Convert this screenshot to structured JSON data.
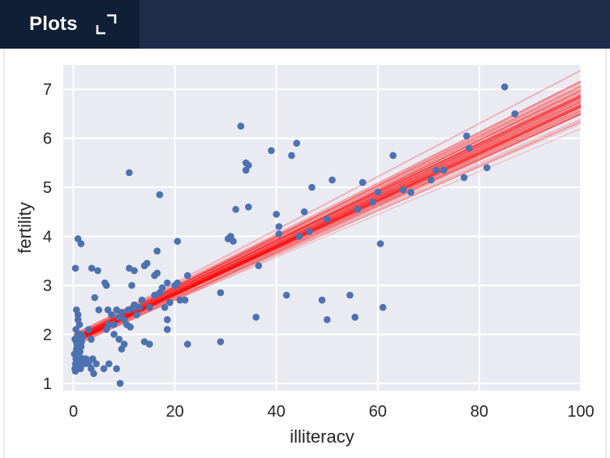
{
  "tab": {
    "label": "Plots",
    "expand_icon": "expand-icon"
  },
  "colors": {
    "header_bg": "#1e2e4a",
    "tab_bg": "#0f1f36",
    "plot_bg": "#eaeaf2",
    "point": "#4c72b0",
    "line": "#ff0000"
  },
  "chart_data": {
    "type": "scatter",
    "title": "",
    "xlabel": "illiteracy",
    "ylabel": "fertility",
    "xlim": [
      -2,
      100
    ],
    "ylim": [
      0.85,
      7.5
    ],
    "xticks": [
      0,
      20,
      40,
      60,
      80,
      100
    ],
    "yticks": [
      1,
      2,
      3,
      4,
      5,
      6,
      7
    ],
    "grid": true,
    "points": [
      [
        0.3,
        1.3
      ],
      [
        0.4,
        1.4
      ],
      [
        0.5,
        1.5
      ],
      [
        0.5,
        1.6
      ],
      [
        0.6,
        1.7
      ],
      [
        0.7,
        1.8
      ],
      [
        0.8,
        1.9
      ],
      [
        0.9,
        2.0
      ],
      [
        1.0,
        1.35
      ],
      [
        1.1,
        1.45
      ],
      [
        1.2,
        1.55
      ],
      [
        1.3,
        1.65
      ],
      [
        1.5,
        1.75
      ],
      [
        1.6,
        1.85
      ],
      [
        1.8,
        1.95
      ],
      [
        2.0,
        1.5
      ],
      [
        2.2,
        1.4
      ],
      [
        0.4,
        1.25
      ],
      [
        0.8,
        1.3
      ],
      [
        1.4,
        1.3
      ],
      [
        0.2,
        1.6
      ],
      [
        0.3,
        1.9
      ],
      [
        0.5,
        2.1
      ],
      [
        0.9,
        2.3
      ],
      [
        1.2,
        2.2
      ],
      [
        1.5,
        2.0
      ],
      [
        2.5,
        1.5
      ],
      [
        3.0,
        1.4
      ],
      [
        3.5,
        1.3
      ],
      [
        4.0,
        1.2
      ],
      [
        3.8,
        1.5
      ],
      [
        4.5,
        1.4
      ],
      [
        0.6,
        2.5
      ],
      [
        0.9,
        2.4
      ],
      [
        1.5,
        3.85
      ],
      [
        0.9,
        3.95
      ],
      [
        0.4,
        3.35
      ],
      [
        3.6,
        3.35
      ],
      [
        4.8,
        3.3
      ],
      [
        6.2,
        3.05
      ],
      [
        6.5,
        3.0
      ],
      [
        4.2,
        2.75
      ],
      [
        5.0,
        2.5
      ],
      [
        6.8,
        2.5
      ],
      [
        7.5,
        2.4
      ],
      [
        8.0,
        2.2
      ],
      [
        8.5,
        2.5
      ],
      [
        9.0,
        2.35
      ],
      [
        9.5,
        2.45
      ],
      [
        10.0,
        2.3
      ],
      [
        7.0,
        2.2
      ],
      [
        6.5,
        2.1
      ],
      [
        8.0,
        2.0
      ],
      [
        9.0,
        1.9
      ],
      [
        10.0,
        1.8
      ],
      [
        9.5,
        1.7
      ],
      [
        3.0,
        2.1
      ],
      [
        3.5,
        1.9
      ],
      [
        7.0,
        1.4
      ],
      [
        8.5,
        1.3
      ],
      [
        6.0,
        1.3
      ],
      [
        9.2,
        1.0
      ],
      [
        11.0,
        5.3
      ],
      [
        17.0,
        4.85
      ],
      [
        11.0,
        3.35
      ],
      [
        12.0,
        3.3
      ],
      [
        14.0,
        3.4
      ],
      [
        14.5,
        3.45
      ],
      [
        16.5,
        3.7
      ],
      [
        16.0,
        3.2
      ],
      [
        16.5,
        3.25
      ],
      [
        11.5,
        3.0
      ],
      [
        12.0,
        2.6
      ],
      [
        13.0,
        2.55
      ],
      [
        15.0,
        2.55
      ],
      [
        16.0,
        2.8
      ],
      [
        17.0,
        2.85
      ],
      [
        17.5,
        2.95
      ],
      [
        18.5,
        3.05
      ],
      [
        18.0,
        2.55
      ],
      [
        19.0,
        2.65
      ],
      [
        20.0,
        3.0
      ],
      [
        20.5,
        3.05
      ],
      [
        21.0,
        2.7
      ],
      [
        22.0,
        2.7
      ],
      [
        22.5,
        3.2
      ],
      [
        20.5,
        3.9
      ],
      [
        18.5,
        2.3
      ],
      [
        18.5,
        2.1
      ],
      [
        14.0,
        1.85
      ],
      [
        15.0,
        1.8
      ],
      [
        22.5,
        1.8
      ],
      [
        10.5,
        2.2
      ],
      [
        11.2,
        2.15
      ],
      [
        12.5,
        2.4
      ],
      [
        10.8,
        2.5
      ],
      [
        11.8,
        2.55
      ],
      [
        13.5,
        2.7
      ],
      [
        33.0,
        6.25
      ],
      [
        34.0,
        5.5
      ],
      [
        34.5,
        5.45
      ],
      [
        34.0,
        5.35
      ],
      [
        32.0,
        4.55
      ],
      [
        34.5,
        4.6
      ],
      [
        31.0,
        4.0
      ],
      [
        30.5,
        3.95
      ],
      [
        31.5,
        3.9
      ],
      [
        36.5,
        3.4
      ],
      [
        36.0,
        2.35
      ],
      [
        29.0,
        2.85
      ],
      [
        29.0,
        1.85
      ],
      [
        39.0,
        5.75
      ],
      [
        43.0,
        5.65
      ],
      [
        44.0,
        5.9
      ],
      [
        47.0,
        5.0
      ],
      [
        40.0,
        4.45
      ],
      [
        40.5,
        4.2
      ],
      [
        40.5,
        4.05
      ],
      [
        44.5,
        4.0
      ],
      [
        45.5,
        4.5
      ],
      [
        46.5,
        4.1
      ],
      [
        51.0,
        5.15
      ],
      [
        50.0,
        4.35
      ],
      [
        42.0,
        2.8
      ],
      [
        49.0,
        2.7
      ],
      [
        50.0,
        2.3
      ],
      [
        54.5,
        2.8
      ],
      [
        55.5,
        2.35
      ],
      [
        57.0,
        5.1
      ],
      [
        56.0,
        4.55
      ],
      [
        59.0,
        4.7
      ],
      [
        60.0,
        4.9
      ],
      [
        60.5,
        3.85
      ],
      [
        61.0,
        2.55
      ],
      [
        63.0,
        5.65
      ],
      [
        65.0,
        4.95
      ],
      [
        66.5,
        4.9
      ],
      [
        70.5,
        5.15
      ],
      [
        71.5,
        5.35
      ],
      [
        73.0,
        5.35
      ],
      [
        77.0,
        5.2
      ],
      [
        77.5,
        6.05
      ],
      [
        78.0,
        5.8
      ],
      [
        81.5,
        5.4
      ],
      [
        85.0,
        7.05
      ],
      [
        87.0,
        6.5
      ]
    ],
    "lines": {
      "count": 100,
      "mean_intercept": 1.88,
      "mean_slope": 0.0495,
      "sd_intercept": 0.08,
      "sd_slope": 0.0028
    }
  }
}
